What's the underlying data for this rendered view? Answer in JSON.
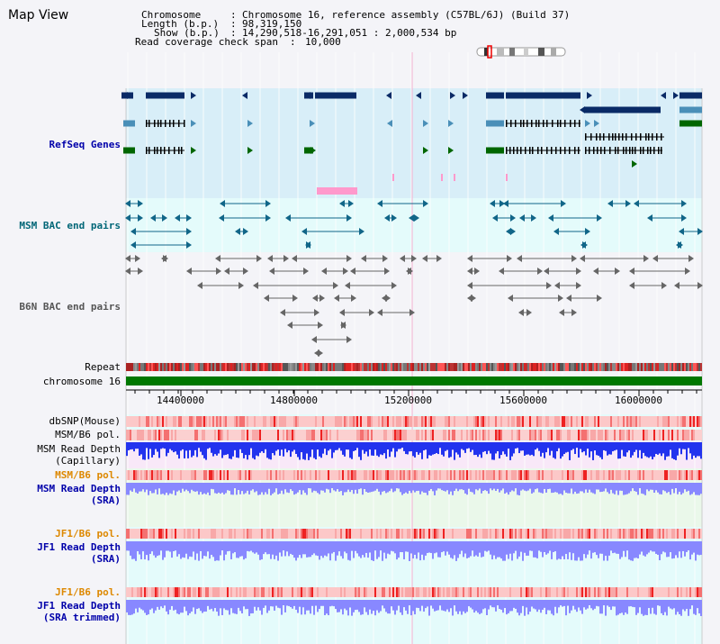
{
  "window": {
    "title": "Map View"
  },
  "header": {
    "chromosome_label": "Chromosome",
    "chromosome_value": "Chromosome 16, reference assembly (C57BL/6J) (Build 37)",
    "length_label": "Length (b.p.)",
    "length_value": "98,319,150",
    "show_label": "Show (b.p.)",
    "show_value": "14,290,518-16,291,051 : 2,000,534 bp",
    "coverage_label": "Read coverage check span",
    "coverage_value": "10,000"
  },
  "tracks": {
    "refseq": "RefSeq Genes",
    "msm_bac": "MSM BAC end pairs",
    "b6n_bac": "B6N BAC end pairs",
    "repeat": "Repeat",
    "chromosome": "chromosome 16",
    "dbsnp": "dbSNP(Mouse)",
    "msm_b6_pol_1": "MSM/B6 pol.",
    "msm_depth_cap": "MSM Read Depth\n(Capillary)",
    "msm_b6_pol_2": "MSM/B6 pol.",
    "msm_depth_sra": "MSM Read Depth\n(SRA)",
    "jf1_b6_pol_1": "JF1/B6 pol.",
    "jf1_depth_sra": "JF1 Read Depth\n(SRA)",
    "jf1_b6_pol_2": "JF1/B6 pol.",
    "jf1_depth_trim": "JF1 Read Depth\n(SRA trimmed)"
  },
  "axis": {
    "ticks": [
      "14400000",
      "14800000",
      "15200000",
      "15600000",
      "16000000"
    ]
  },
  "colors": {
    "gene_navy": "#0a2a66",
    "gene_steel": "#4a8fb8",
    "gene_green": "#006600",
    "msm_line": "#116688",
    "b6n_line": "#666666",
    "depth_blue": "#2233ee",
    "depth_light": "#8888ff"
  }
}
